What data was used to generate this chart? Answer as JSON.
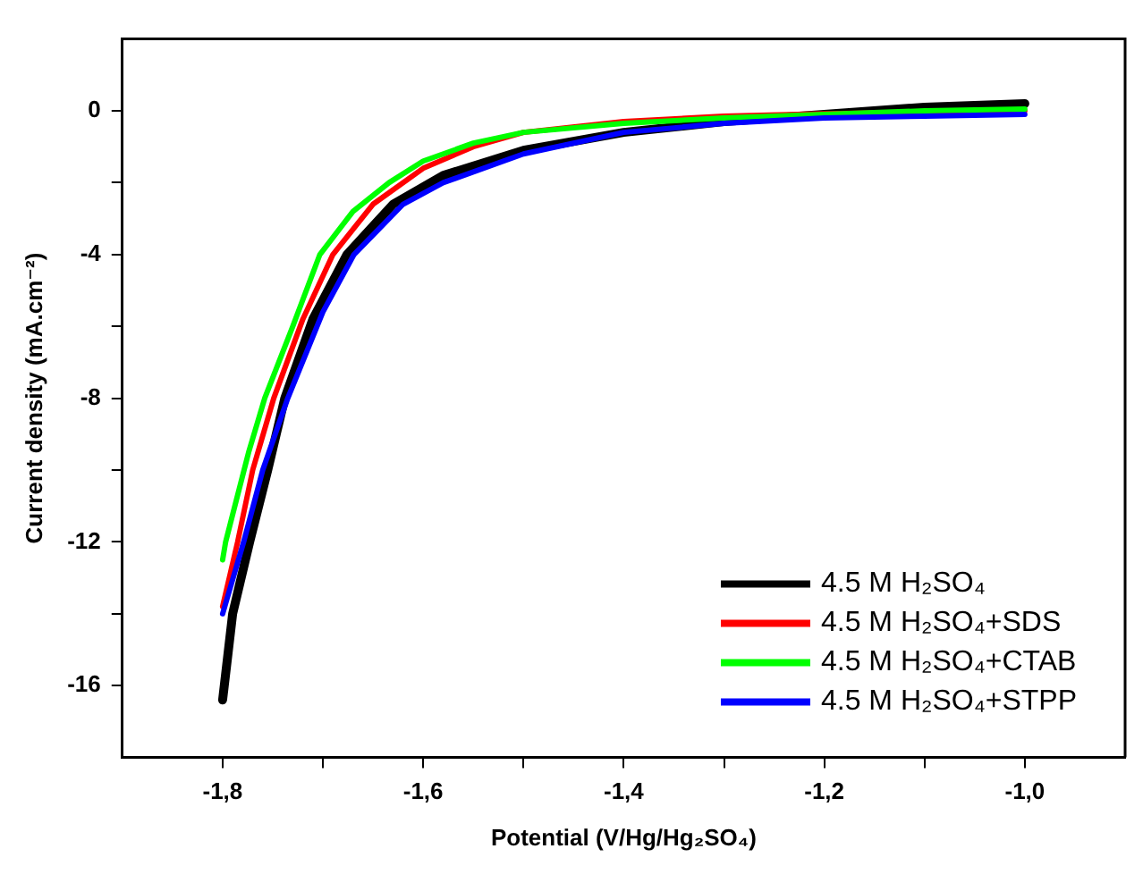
{
  "chart_data": {
    "type": "line",
    "xlabel": "Potential (V/Hg/Hg₂SO₄)",
    "ylabel": "Current density (mA.cm⁻²)",
    "xlim": [
      -1.9,
      -0.9
    ],
    "ylim": [
      -18,
      2
    ],
    "xticks": [
      {
        "value": -1.8,
        "label": "-1,8"
      },
      {
        "value": -1.7,
        "label": null
      },
      {
        "value": -1.6,
        "label": "-1,6"
      },
      {
        "value": -1.5,
        "label": null
      },
      {
        "value": -1.4,
        "label": "-1,4"
      },
      {
        "value": -1.3,
        "label": null
      },
      {
        "value": -1.2,
        "label": "-1,2"
      },
      {
        "value": -1.1,
        "label": null
      },
      {
        "value": -1.0,
        "label": "-1,0"
      }
    ],
    "yticks": [
      {
        "value": -16,
        "label": "-16"
      },
      {
        "value": -14,
        "label": null
      },
      {
        "value": -12,
        "label": "-12"
      },
      {
        "value": -10,
        "label": null
      },
      {
        "value": -8,
        "label": "-8"
      },
      {
        "value": -6,
        "label": null
      },
      {
        "value": -4,
        "label": "-4"
      },
      {
        "value": -2,
        "label": null
      },
      {
        "value": 0,
        "label": "0"
      }
    ],
    "grid": false,
    "legend": "bottom right",
    "marker": "none",
    "line_style": "solid",
    "series": [
      {
        "name": "4.5 M H₂SO₄",
        "color": "#000000",
        "x": [
          -1.8,
          -1.79,
          -1.773,
          -1.755,
          -1.738,
          -1.71,
          -1.676,
          -1.63,
          -1.58,
          -1.5,
          -1.4,
          -1.3,
          -1.2,
          -1.1,
          -1.0
        ],
        "values": [
          -16.4,
          -14,
          -12,
          -10,
          -8,
          -5.8,
          -4,
          -2.6,
          -1.8,
          -1.1,
          -0.6,
          -0.3,
          -0.1,
          0.1,
          0.2
        ]
      },
      {
        "name": "4.5 M H₂SO₄+SDS",
        "color": "#ff0000",
        "x": [
          -1.8,
          -1.785,
          -1.77,
          -1.749,
          -1.72,
          -1.69,
          -1.65,
          -1.6,
          -1.55,
          -1.5,
          -1.4,
          -1.3,
          -1.2,
          -1.0
        ],
        "values": [
          -13.8,
          -12,
          -10,
          -8,
          -5.8,
          -4,
          -2.6,
          -1.6,
          -1.0,
          -0.6,
          -0.3,
          -0.15,
          -0.08,
          0
        ]
      },
      {
        "name": "4.5 M H₂SO₄+CTAB",
        "color": "#00ff00",
        "x": [
          -1.8,
          -1.797,
          -1.774,
          -1.758,
          -1.73,
          -1.703,
          -1.67,
          -1.634,
          -1.6,
          -1.55,
          -1.5,
          -1.4,
          -1.3,
          -1.2,
          -1.1,
          -1.0
        ],
        "values": [
          -12.5,
          -12,
          -9.5,
          -8,
          -6,
          -4,
          -2.8,
          -2,
          -1.4,
          -0.9,
          -0.6,
          -0.35,
          -0.2,
          -0.1,
          0,
          0.05
        ]
      },
      {
        "name": "4.5 M H₂SO₄+STPP",
        "color": "#0000ff",
        "x": [
          -1.8,
          -1.779,
          -1.76,
          -1.735,
          -1.7,
          -1.669,
          -1.62,
          -1.58,
          -1.5,
          -1.4,
          -1.3,
          -1.2,
          -1.1,
          -1.0
        ],
        "values": [
          -14,
          -12,
          -10,
          -8,
          -5.6,
          -4,
          -2.6,
          -2,
          -1.2,
          -0.6,
          -0.35,
          -0.2,
          -0.15,
          -0.1
        ]
      }
    ]
  }
}
